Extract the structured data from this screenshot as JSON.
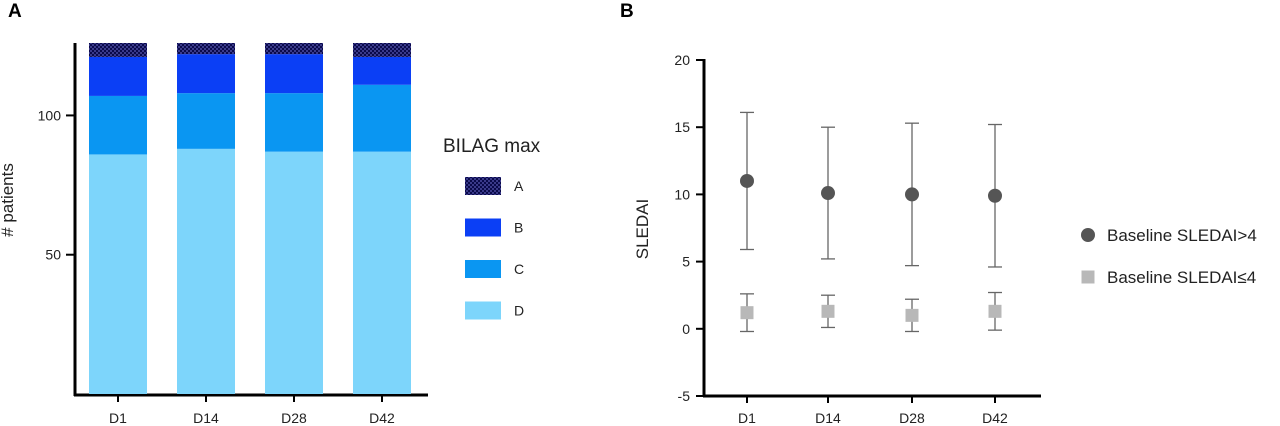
{
  "panels": {
    "a": "A",
    "b": "B"
  },
  "chart_data": [
    {
      "type": "bar",
      "stacked": true,
      "categories": [
        "D1",
        "D14",
        "D28",
        "D42"
      ],
      "series": [
        {
          "name": "D",
          "color": "#7dd5fb",
          "values": [
            86,
            88,
            87,
            87
          ]
        },
        {
          "name": "C",
          "color": "#0a96f2",
          "values": [
            21,
            20,
            21,
            24
          ]
        },
        {
          "name": "B",
          "color": "#0b3ff5",
          "values": [
            14,
            14,
            14,
            10
          ]
        },
        {
          "name": "A",
          "color": "#0a0a4a",
          "pattern": "checkered",
          "values": [
            5,
            4,
            4,
            5
          ]
        }
      ],
      "xlabel": "",
      "ylabel": "# patients",
      "ylim": [
        0,
        126
      ],
      "yticks": [
        50,
        100
      ],
      "legend_title": "BILAG max",
      "legend_order": [
        "A",
        "B",
        "C",
        "D"
      ],
      "legend_position": "right",
      "grid": false
    },
    {
      "type": "scatter",
      "error_bars": true,
      "categories": [
        "D1",
        "D14",
        "D28",
        "D42"
      ],
      "series": [
        {
          "name": "Baseline SLEDAI>4",
          "marker": "circle",
          "color": "#555555",
          "values": [
            11.0,
            10.1,
            10.0,
            9.9
          ],
          "lower": [
            5.9,
            5.2,
            4.7,
            4.6
          ],
          "upper": [
            16.1,
            15.0,
            15.3,
            15.2
          ]
        },
        {
          "name": "Baseline SLEDAI≤4",
          "marker": "square",
          "color": "#b8b8b8",
          "values": [
            1.2,
            1.3,
            1.0,
            1.3
          ],
          "lower": [
            -0.2,
            0.1,
            -0.2,
            -0.1
          ],
          "upper": [
            2.6,
            2.5,
            2.2,
            2.7
          ]
        }
      ],
      "xlabel": "",
      "ylabel": "SLEDAI",
      "ylim": [
        -5,
        20
      ],
      "yticks": [
        -5,
        0,
        5,
        10,
        15,
        20
      ],
      "legend_position": "right",
      "grid": false
    }
  ]
}
